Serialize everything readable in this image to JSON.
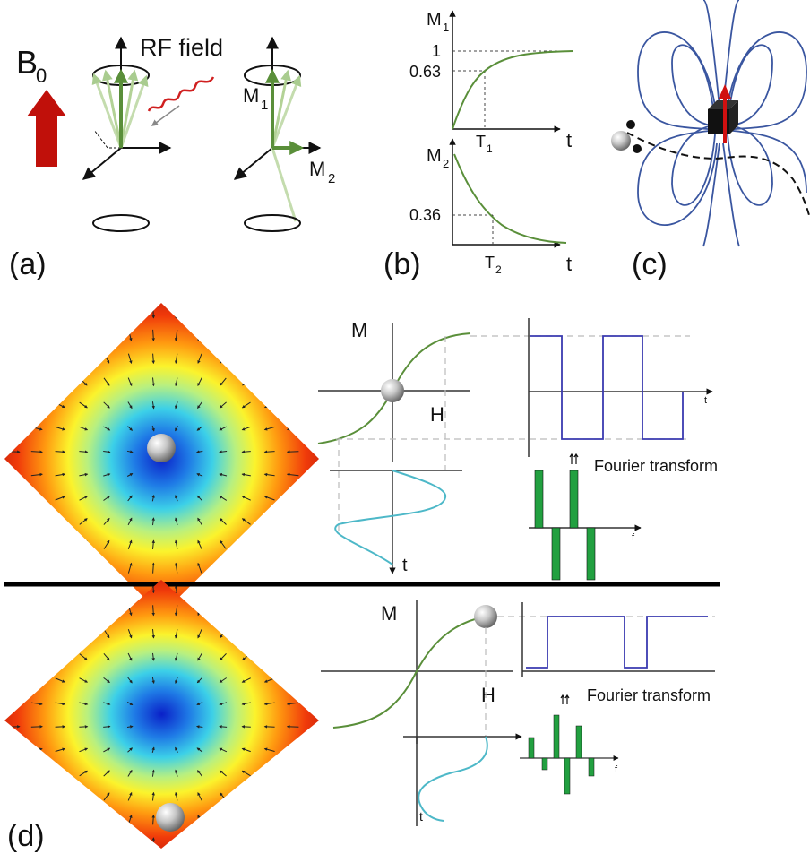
{
  "panel_a": {
    "field_symbol": "B",
    "field_subscript": "0",
    "rf_label": "RF field",
    "m1_symbol": "M",
    "m1_subscript": "1",
    "m2_symbol": "M",
    "m2_subscript": "2",
    "panel_label": "(a)"
  },
  "panel_b": {
    "top": {
      "y_symbol": "M",
      "y_subscript": "1",
      "tick_high": "1",
      "tick_mid": "0.63",
      "t_symbol": "T",
      "t_subscript": "1",
      "x_label": "t"
    },
    "bottom": {
      "y_symbol": "M",
      "y_subscript": "2",
      "tick_mid": "0.36",
      "t_symbol": "T",
      "t_subscript": "2",
      "x_label": "t"
    },
    "panel_label": "(b)"
  },
  "panel_c": {
    "panel_label": "(c)"
  },
  "panel_d": {
    "top": {
      "m_axis": "M",
      "h_axis": "H",
      "t_axis": "t",
      "square_t_axis": "t",
      "f_axis": "f",
      "fourier_label": "Fourier transform"
    },
    "bottom": {
      "m_axis": "M",
      "h_axis": "H",
      "t_axis": "t",
      "f_axis": "f",
      "fourier_label": "Fourier transform"
    },
    "panel_label": "(d)"
  },
  "colors": {
    "magnetization": "#5a8f3a",
    "b0_arrow": "#c0100a",
    "rf_wave": "#d02020",
    "field_lines": "#3a56a0",
    "square_wave": "#3a3ab0",
    "sine_wave": "#4db8c8",
    "spectrum_bar": "#22a040",
    "separator": "#000000"
  }
}
